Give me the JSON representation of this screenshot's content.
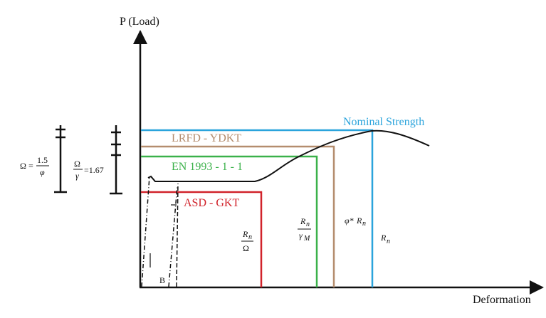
{
  "y_axis_label": "P (Load)",
  "x_axis_label": "Deformation",
  "levels": {
    "nominal": "Nominal Strength",
    "lrfd": "LRFD - YDKT",
    "en": "EN 1993 - 1 - 1",
    "asd": "ASD - GKT"
  },
  "point_label": "B",
  "omega_formula": {
    "symbol": "Ω",
    "equals": "=",
    "numerator": "1.5",
    "denominator": "φ"
  },
  "omega_gamma_formula": {
    "numerator": "Ω",
    "denominator": "γ",
    "equals_value": "=1.67"
  },
  "rn_over_omega": {
    "base": "R",
    "sub": "n",
    "denominator": "Ω"
  },
  "rn_over_gamma_m": {
    "base": "R",
    "sub": "n",
    "denominator": "γ",
    "denominator_sub": "M"
  },
  "phi_rn": {
    "prefix": "φ* ",
    "base": "R",
    "sub": "n"
  },
  "rn": {
    "base": "R",
    "sub": "n"
  }
}
